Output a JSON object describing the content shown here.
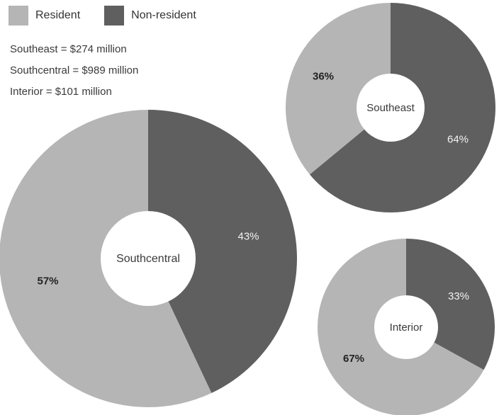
{
  "legend": {
    "resident": "Resident",
    "nonresident": "Non-resident"
  },
  "totals": [
    "Southeast = $274 million",
    "Southcentral = $989 million",
    "Interior = $101 million"
  ],
  "colors": {
    "resident": "#b5b5b5",
    "nonresident": "#5f5f5f",
    "hole": "#ffffff"
  },
  "chart_data": [
    {
      "type": "pie",
      "title": "Southeast",
      "series": [
        {
          "name": "Resident",
          "value": 36,
          "label": "36%"
        },
        {
          "name": "Non-resident",
          "value": 64,
          "label": "64%"
        }
      ]
    },
    {
      "type": "pie",
      "title": "Southcentral",
      "series": [
        {
          "name": "Resident",
          "value": 57,
          "label": "57%"
        },
        {
          "name": "Non-resident",
          "value": 43,
          "label": "43%"
        }
      ]
    },
    {
      "type": "pie",
      "title": "Interior",
      "series": [
        {
          "name": "Resident",
          "value": 67,
          "label": "67%"
        },
        {
          "name": "Non-resident",
          "value": 33,
          "label": "33%"
        }
      ]
    }
  ]
}
